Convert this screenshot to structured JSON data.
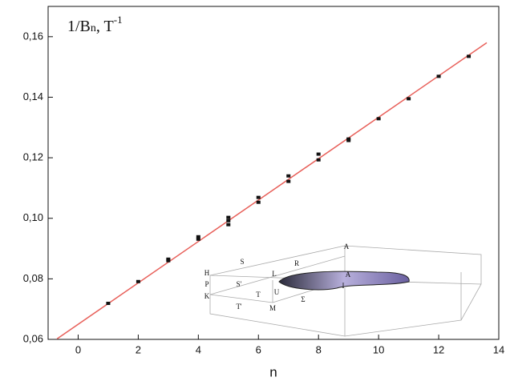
{
  "chart_data": {
    "type": "scatter",
    "annotation": [
      "1/B",
      "n",
      ", T",
      "-1"
    ],
    "x_label": "n",
    "xlim": [
      -1,
      14
    ],
    "xticks": [
      0,
      2,
      4,
      6,
      8,
      10,
      12,
      14
    ],
    "ylim": [
      0.06,
      0.17
    ],
    "yticks": [
      {
        "value": 0.06,
        "label": "0,06"
      },
      {
        "value": 0.08,
        "label": "0,08"
      },
      {
        "value": 0.1,
        "label": "0,10"
      },
      {
        "value": 0.12,
        "label": "0,12"
      },
      {
        "value": 0.14,
        "label": "0,14"
      },
      {
        "value": 0.16,
        "label": "0,16"
      }
    ],
    "series": [
      {
        "color": "#111111",
        "mode": "markers",
        "x": [
          1,
          2,
          3,
          3,
          4,
          4,
          5,
          5,
          5,
          6,
          6,
          7,
          7,
          8,
          8,
          9,
          9,
          10,
          11,
          12,
          13
        ],
        "values": [
          0.0719,
          0.0791,
          0.0865,
          0.086,
          0.0939,
          0.0931,
          0.1003,
          0.0992,
          0.0979,
          0.1069,
          0.1053,
          0.114,
          0.1122,
          0.1212,
          0.1193,
          0.1262,
          0.1257,
          0.1329,
          0.1395,
          0.1469,
          0.1535
        ]
      },
      {
        "color": "#e8605a",
        "mode": "line",
        "x": [
          -0.7,
          13.6
        ],
        "values": [
          0.0602,
          0.158
        ]
      }
    ],
    "inset_labels": [
      "H",
      "S",
      "R",
      "A",
      "A",
      "P",
      "S'",
      "L",
      "K",
      "T",
      "U",
      "T'",
      "M",
      "Σ",
      "I"
    ]
  }
}
